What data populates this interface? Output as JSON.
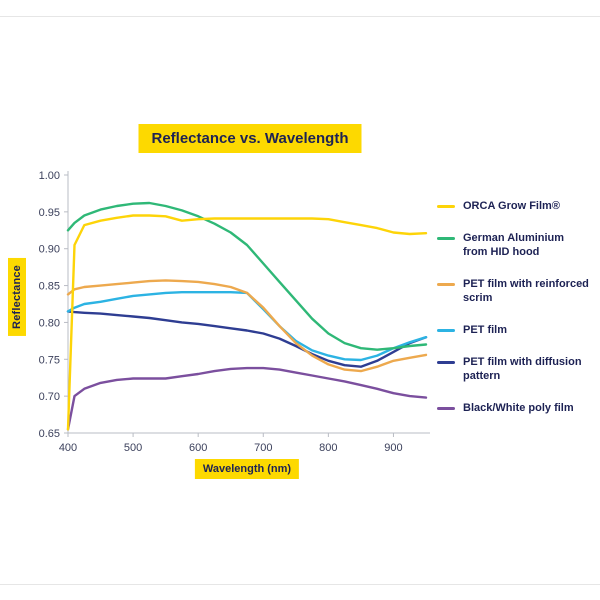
{
  "colors": {
    "accent_yellow": "#fdd900",
    "text_navy": "#1d2254",
    "tick_text": "#3c415c",
    "axis_line": "#b9bcc4"
  },
  "title": "Reflectance vs. Wavelength",
  "chart_data": {
    "type": "line",
    "title": "Reflectance vs. Wavelength",
    "xlabel": "Wavelength (nm)",
    "ylabel": "Reflectance",
    "xlim": [
      400,
      950
    ],
    "ylim": [
      0.65,
      1.0
    ],
    "grid": false,
    "legend_position": "right",
    "x_ticks": [
      400,
      500,
      600,
      700,
      800,
      900
    ],
    "x_tick_labels": [
      "400",
      "500",
      "600",
      "700",
      "800",
      "900"
    ],
    "y_ticks": [
      0.65,
      0.7,
      0.75,
      0.8,
      0.85,
      0.9,
      0.95,
      1.0
    ],
    "y_tick_labels": [
      "0.65",
      "0.70",
      "0.75",
      "0.80",
      "0.85",
      "0.90",
      "0.95",
      "1.00"
    ],
    "x": [
      400,
      410,
      425,
      450,
      475,
      500,
      525,
      550,
      575,
      600,
      625,
      650,
      675,
      700,
      725,
      750,
      775,
      800,
      825,
      850,
      875,
      900,
      925,
      950
    ],
    "series": [
      {
        "id": "orca-grow-film",
        "name": "ORCA Grow Film®",
        "color": "#fdd408",
        "values": [
          0.655,
          0.905,
          0.932,
          0.938,
          0.942,
          0.945,
          0.945,
          0.944,
          0.938,
          0.94,
          0.941,
          0.941,
          0.941,
          0.941,
          0.941,
          0.941,
          0.941,
          0.94,
          0.936,
          0.932,
          0.928,
          0.922,
          0.92,
          0.921
        ]
      },
      {
        "id": "german-aluminium",
        "name": "German Aluminium from HID hood",
        "color": "#2fb877",
        "values": [
          0.925,
          0.935,
          0.945,
          0.953,
          0.958,
          0.961,
          0.962,
          0.958,
          0.952,
          0.944,
          0.934,
          0.922,
          0.905,
          0.88,
          0.855,
          0.83,
          0.805,
          0.785,
          0.772,
          0.765,
          0.763,
          0.765,
          0.768,
          0.77
        ]
      },
      {
        "id": "pet-reinforced-scrim",
        "name": "PET film with reinforced scrim",
        "color": "#eda94e",
        "values": [
          0.838,
          0.845,
          0.848,
          0.85,
          0.852,
          0.854,
          0.856,
          0.857,
          0.856,
          0.855,
          0.852,
          0.848,
          0.84,
          0.82,
          0.795,
          0.772,
          0.755,
          0.743,
          0.736,
          0.734,
          0.74,
          0.748,
          0.752,
          0.756
        ]
      },
      {
        "id": "pet-film",
        "name": "PET film",
        "color": "#2cb3e3",
        "values": [
          0.815,
          0.82,
          0.825,
          0.828,
          0.832,
          0.836,
          0.838,
          0.84,
          0.841,
          0.841,
          0.841,
          0.841,
          0.84,
          0.818,
          0.795,
          0.775,
          0.762,
          0.755,
          0.75,
          0.749,
          0.755,
          0.765,
          0.773,
          0.78
        ]
      },
      {
        "id": "pet-diffusion",
        "name": "PET film with diffusion pattern",
        "color": "#2e3d92",
        "values": [
          0.815,
          0.814,
          0.813,
          0.812,
          0.81,
          0.808,
          0.806,
          0.803,
          0.8,
          0.798,
          0.795,
          0.792,
          0.789,
          0.785,
          0.778,
          0.768,
          0.757,
          0.748,
          0.742,
          0.74,
          0.748,
          0.76,
          0.772,
          0.78
        ]
      },
      {
        "id": "black-white-poly",
        "name": "Black/White poly film",
        "color": "#7b4f9e",
        "values": [
          0.655,
          0.7,
          0.71,
          0.718,
          0.722,
          0.724,
          0.724,
          0.724,
          0.727,
          0.73,
          0.734,
          0.737,
          0.738,
          0.738,
          0.736,
          0.732,
          0.728,
          0.724,
          0.72,
          0.715,
          0.71,
          0.704,
          0.7,
          0.698
        ]
      }
    ]
  }
}
